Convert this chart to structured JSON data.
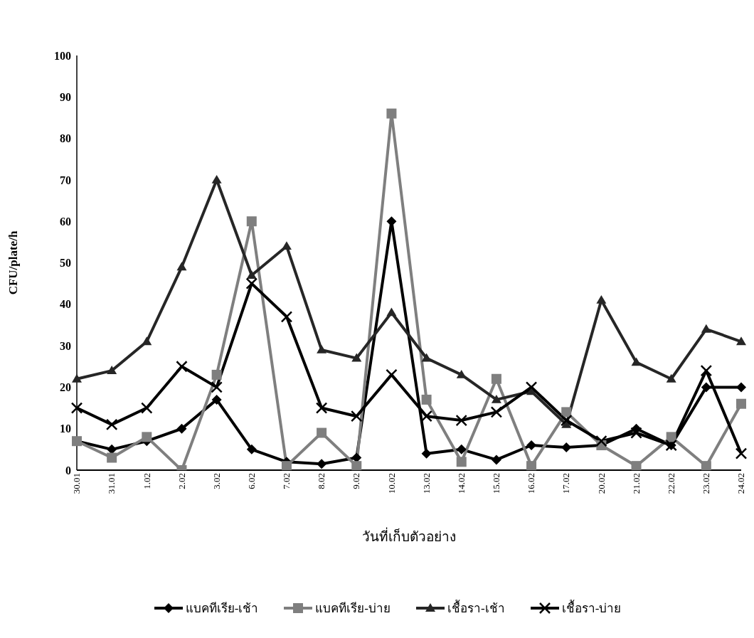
{
  "chart_data": {
    "type": "line",
    "xlabel": "วันที่เก็บตัวอย่าง",
    "ylabel": "CFU/plate/h",
    "categories": [
      "30.01",
      "31.01",
      "1.02",
      "2.02",
      "3.02",
      "6.02",
      "7.02",
      "8.02",
      "9.02",
      "10.02",
      "13.02",
      "14.02",
      "15.02",
      "16.02",
      "17.02",
      "20.02",
      "21.02",
      "22.02",
      "23.02",
      "24.02"
    ],
    "series": [
      {
        "name": "แบคทีเรีย-เช้า",
        "color": "#000000",
        "marker": "diamond",
        "values": [
          7,
          5,
          7,
          10,
          17,
          5,
          2,
          1.5,
          3,
          60,
          4,
          5,
          2.5,
          6,
          5.5,
          6,
          10,
          6,
          20,
          20
        ]
      },
      {
        "name": "แบคทีเรีย-บ่าย",
        "color": "#7f7f7f",
        "marker": "square",
        "values": [
          7,
          3,
          8,
          0,
          23,
          60,
          1,
          9,
          1,
          86,
          17,
          2,
          22,
          1,
          14,
          6,
          1,
          8,
          1,
          16
        ]
      },
      {
        "name": "เชื้อรา-เช้า",
        "color": "#262626",
        "marker": "triangle",
        "values": [
          22,
          24,
          31,
          49,
          70,
          47,
          54,
          29,
          27,
          38,
          27,
          23,
          17,
          19,
          11,
          41,
          26,
          22,
          34,
          31
        ]
      },
      {
        "name": "เชื้อรา-บ่าย",
        "color": "#000000",
        "marker": "cross",
        "values": [
          15,
          11,
          15,
          25,
          20,
          45,
          37,
          15,
          13,
          23,
          13,
          12,
          14,
          20,
          12,
          7,
          9,
          6,
          24,
          4
        ]
      }
    ],
    "ylim": [
      0,
      100
    ],
    "yticks": [
      0,
      10,
      20,
      30,
      40,
      50,
      60,
      70,
      80,
      90,
      100
    ],
    "grid": false,
    "legend": "bottom"
  }
}
